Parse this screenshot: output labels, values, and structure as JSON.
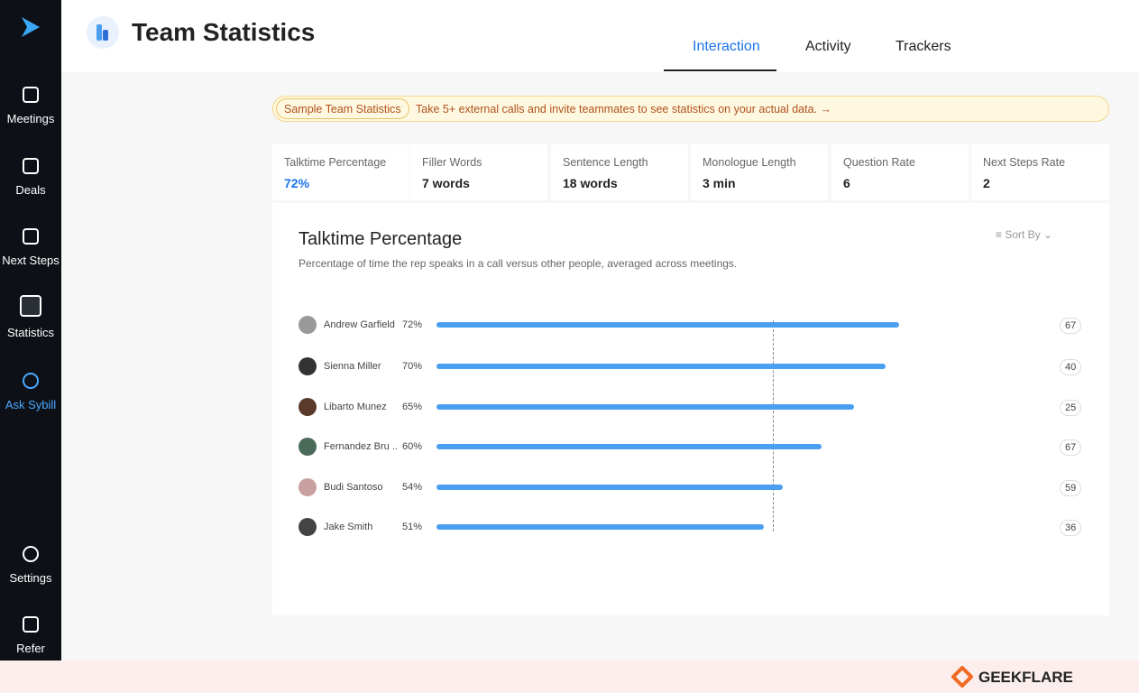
{
  "sidebar": {
    "items": [
      "Meetings",
      "Deals",
      "Next Steps",
      "Statistics",
      "Ask Sybill",
      "Settings",
      "Refer"
    ]
  },
  "header": {
    "title": "Team Statistics",
    "tabs": [
      "Interaction",
      "Activity",
      "Trackers"
    ]
  },
  "banner": {
    "tag": "Sample Team Statistics",
    "text": "Take 5+ external calls and invite teammates to see statistics on your actual data. →"
  },
  "metrics": [
    {
      "label": "Talktime Percentage",
      "value": "72%"
    },
    {
      "label": "Filler Words",
      "value": "7 words"
    },
    {
      "label": "Sentence Length",
      "value": "18 words"
    },
    {
      "label": "Monologue Length",
      "value": "3 min"
    },
    {
      "label": "Question Rate",
      "value": "6"
    },
    {
      "label": "Next Steps Rate",
      "value": "2"
    }
  ],
  "chart_data": {
    "type": "bar",
    "title": "Talktime Percentage",
    "subtitle": "Percentage of time the rep speaks in a call versus other people, averaged across meetings.",
    "sort_label": "Sort By",
    "categories": [
      "Andrew Garfield",
      "Sienna Miller",
      "Libarto Munez",
      "Fernandez Bru ..",
      "Budi Santoso",
      "Jake Smith"
    ],
    "values": [
      72,
      70,
      65,
      60,
      54,
      51
    ],
    "value_labels": [
      "72%",
      "70%",
      "65%",
      "60%",
      "54%",
      "51%"
    ],
    "counts": [
      67,
      40,
      25,
      67,
      59,
      36
    ],
    "color": "#4a9ff0",
    "xlim": [
      0,
      100
    ]
  },
  "footer": {
    "brand": "GEEKFLARE"
  }
}
